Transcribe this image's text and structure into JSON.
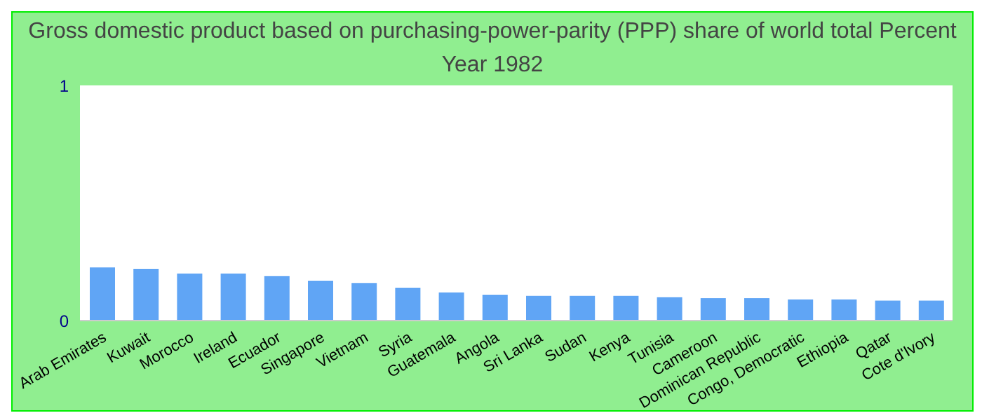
{
  "chart_data": {
    "type": "bar",
    "title": "Gross domestic product based on purchasing-power-parity (PPP) share of world total  Percent",
    "subtitle": "Year 1982",
    "categories": [
      "Arab Emirates",
      "Kuwait",
      "Morocco",
      "Ireland",
      "Ecuador",
      "Singapore",
      "Vietnam",
      "Syria",
      "Guatemala",
      "Angola",
      "Sri Lanka",
      "Sudan",
      "Kenya",
      "Tunisia",
      "Cameroon",
      "Dominican Republic",
      "Congo, Democratic",
      "Ethiopia",
      "Qatar",
      "Cote d'Ivory"
    ],
    "values": [
      0.226,
      0.22,
      0.2,
      0.2,
      0.19,
      0.17,
      0.16,
      0.14,
      0.12,
      0.11,
      0.105,
      0.105,
      0.105,
      0.1,
      0.095,
      0.095,
      0.09,
      0.09,
      0.085,
      0.085
    ],
    "color": "#60a5f5",
    "ylim": [
      0,
      1
    ],
    "yticks": [
      0,
      1
    ],
    "grid": false,
    "legend": false
  }
}
